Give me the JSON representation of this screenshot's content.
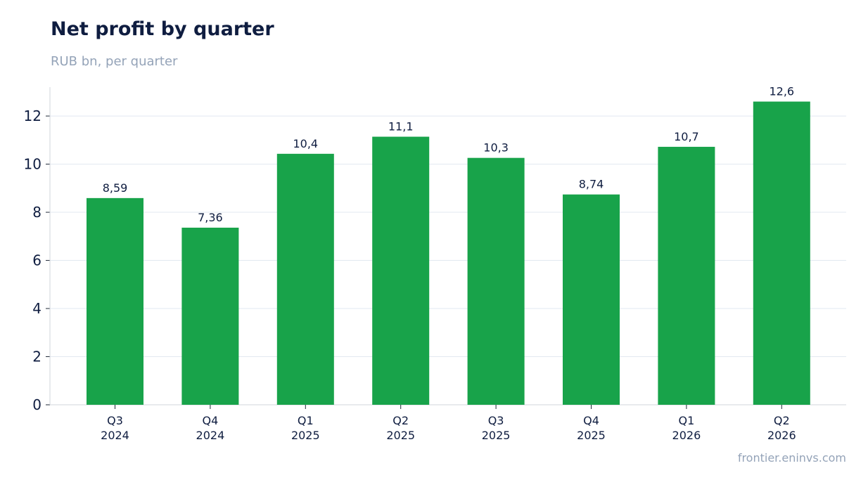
{
  "header": {
    "title": "Net profit by quarter",
    "subtitle": "RUB bn, per quarter"
  },
  "footer": {
    "source": "frontier.eninvs.com"
  },
  "chart_data": {
    "type": "bar",
    "title": "Net profit by quarter",
    "subtitle": "RUB bn, per quarter",
    "xlabel": "",
    "ylabel": "",
    "categories": [
      [
        "Q3",
        "2024"
      ],
      [
        "Q4",
        "2024"
      ],
      [
        "Q1",
        "2025"
      ],
      [
        "Q2",
        "2025"
      ],
      [
        "Q3",
        "2025"
      ],
      [
        "Q4",
        "2025"
      ],
      [
        "Q1",
        "2026"
      ],
      [
        "Q2",
        "2026"
      ]
    ],
    "values": [
      8.59,
      7.36,
      10.43,
      11.14,
      10.26,
      8.74,
      10.72,
      12.6
    ],
    "data_labels": [
      "8,59",
      "7,36",
      "10,4",
      "11,1",
      "10,3",
      "8,74",
      "10,7",
      "12,6"
    ],
    "ylim": [
      0,
      13.2
    ],
    "yticks": [
      0,
      2,
      4,
      6,
      8,
      10,
      12
    ],
    "grid": true,
    "bar_color": "#18a34a"
  }
}
